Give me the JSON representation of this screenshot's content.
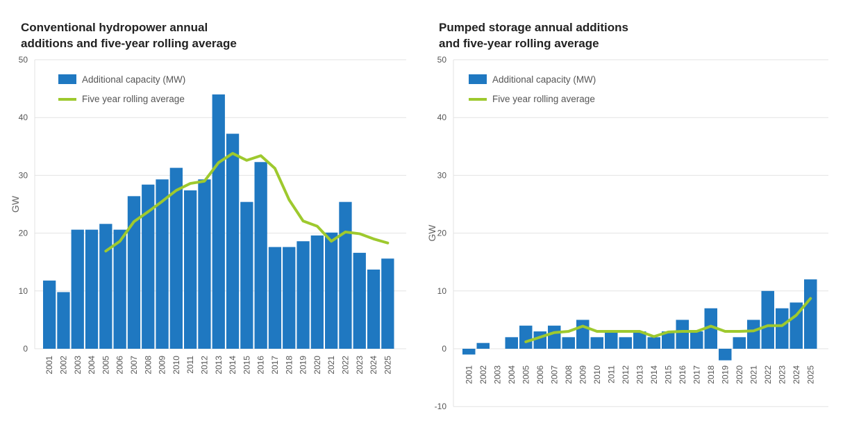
{
  "chart_data": [
    {
      "type": "bar",
      "title": "Conventional hydropower annual\nadditions and five-year rolling average",
      "ylabel": "GW",
      "xlabel": "",
      "ylim": [
        0,
        50
      ],
      "yticks": [
        0,
        10,
        20,
        30,
        40,
        50
      ],
      "grid": true,
      "legend_position": "top-left",
      "categories": [
        "2001",
        "2002",
        "2003",
        "2004",
        "2005",
        "2006",
        "2007",
        "2008",
        "2009",
        "2010",
        "2011",
        "2012",
        "2013",
        "2014",
        "2015",
        "2016",
        "2017",
        "2018",
        "2019",
        "2020",
        "2021",
        "2022",
        "2023",
        "2024",
        "2025"
      ],
      "series": [
        {
          "name": "Additional capacity (MW)",
          "type": "bar",
          "color": "#1f78c1",
          "values": [
            11.8,
            9.8,
            20.6,
            20.6,
            21.6,
            20.6,
            26.4,
            28.4,
            29.3,
            31.3,
            27.4,
            29.3,
            44.0,
            37.2,
            25.4,
            32.3,
            17.6,
            17.6,
            18.6,
            19.6,
            20.1,
            25.4,
            16.6,
            13.7,
            15.6
          ]
        },
        {
          "name": "Five year rolling average",
          "type": "line",
          "color": "#9ec92e",
          "x": [
            "2005",
            "2006",
            "2007",
            "2008",
            "2009",
            "2010",
            "2011",
            "2012",
            "2013",
            "2014",
            "2015",
            "2016",
            "2017",
            "2018",
            "2019",
            "2020",
            "2021",
            "2022",
            "2023",
            "2024",
            "2025"
          ],
          "values": [
            16.9,
            18.6,
            22.0,
            23.7,
            25.5,
            27.4,
            28.6,
            29.0,
            32.2,
            33.8,
            32.6,
            33.4,
            31.2,
            25.8,
            22.1,
            21.2,
            18.6,
            20.2,
            19.9,
            19.0,
            18.3
          ]
        }
      ]
    },
    {
      "type": "bar",
      "title": "Pumped storage annual additions\nand five-year rolling average",
      "ylabel": "GW",
      "xlabel": "",
      "ylim": [
        -10,
        50
      ],
      "yticks": [
        -10,
        0,
        10,
        20,
        30,
        40,
        50
      ],
      "grid": true,
      "legend_position": "top-left",
      "categories": [
        "2001",
        "2002",
        "2003",
        "2004",
        "2005",
        "2006",
        "2007",
        "2008",
        "2009",
        "2010",
        "2011",
        "2012",
        "2013",
        "2014",
        "2015",
        "2016",
        "2017",
        "2018",
        "2019",
        "2020",
        "2021",
        "2022",
        "2023",
        "2024",
        "2025"
      ],
      "series": [
        {
          "name": "Additional capacity (MW)",
          "type": "bar",
          "color": "#1f78c1",
          "values": [
            -1.0,
            1.0,
            0.0,
            2.0,
            4.0,
            3.0,
            4.0,
            2.0,
            5.0,
            2.0,
            3.0,
            2.0,
            3.0,
            2.0,
            3.0,
            5.0,
            3.0,
            7.0,
            -2.0,
            2.0,
            5.0,
            10.0,
            7.0,
            8.0,
            12.0
          ]
        },
        {
          "name": "Five year rolling average",
          "type": "line",
          "color": "#9ec92e",
          "x": [
            "2005",
            "2006",
            "2007",
            "2008",
            "2009",
            "2010",
            "2011",
            "2012",
            "2013",
            "2014",
            "2015",
            "2016",
            "2017",
            "2018",
            "2019",
            "2020",
            "2021",
            "2022",
            "2023",
            "2024",
            "2025"
          ],
          "values": [
            1.2,
            2.0,
            2.8,
            3.0,
            3.9,
            3.0,
            3.0,
            3.0,
            3.0,
            2.1,
            2.9,
            3.0,
            3.0,
            3.9,
            3.0,
            3.0,
            3.1,
            4.0,
            4.0,
            5.8,
            8.7
          ]
        }
      ]
    }
  ]
}
